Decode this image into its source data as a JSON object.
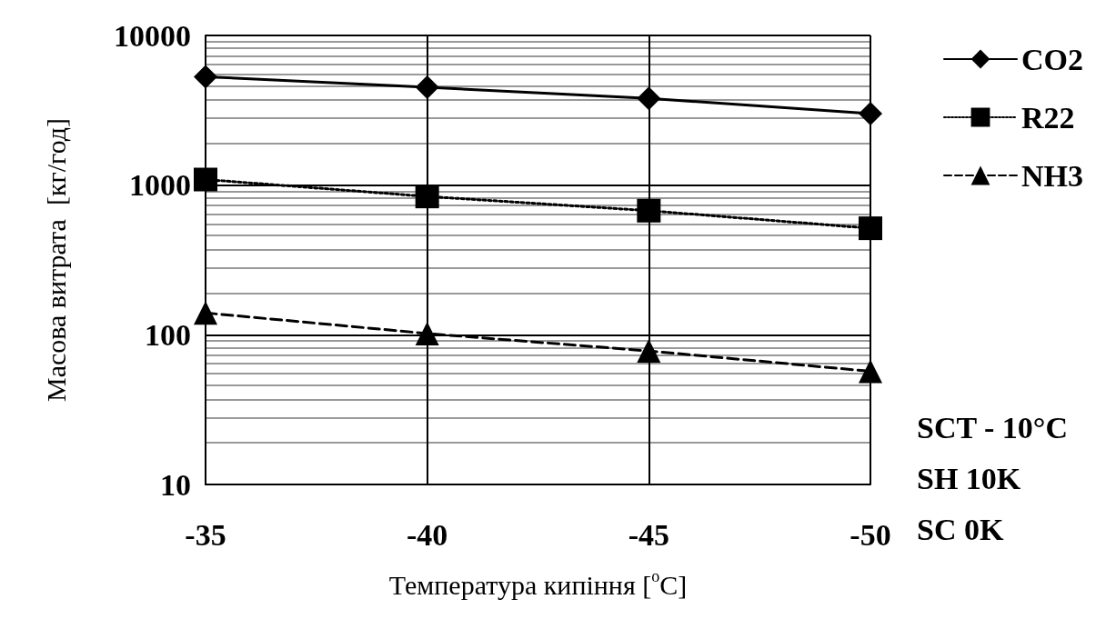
{
  "chart_data": {
    "type": "line",
    "xlabel": "Температура кипіння [$^{o}$C]",
    "ylabel": "Масова витрата  [кг/год]",
    "categories": [
      "-35",
      "-40",
      "-45",
      "-50"
    ],
    "series": [
      {
        "name": "CO2",
        "color": "#000000",
        "marker": "diamond",
        "line_style": "solid",
        "values": [
          5300,
          4500,
          3800,
          3000
        ]
      },
      {
        "name": "R22",
        "color": "#000000",
        "marker": "square",
        "line_style": "dotted",
        "values": [
          1090,
          840,
          675,
          515
        ]
      },
      {
        "name": "NH3",
        "color": "#000000",
        "marker": "triangle",
        "line_style": "dashed",
        "values": [
          140,
          102,
          78,
          57
        ]
      }
    ],
    "log": "y",
    "ylim": [
      10,
      10000
    ],
    "yticks": [
      10,
      100,
      1000,
      10000
    ],
    "grid": true,
    "legend": "top right",
    "annotations": [
      "SCT - 10°C",
      "SH 10K",
      "SC 0K"
    ]
  }
}
